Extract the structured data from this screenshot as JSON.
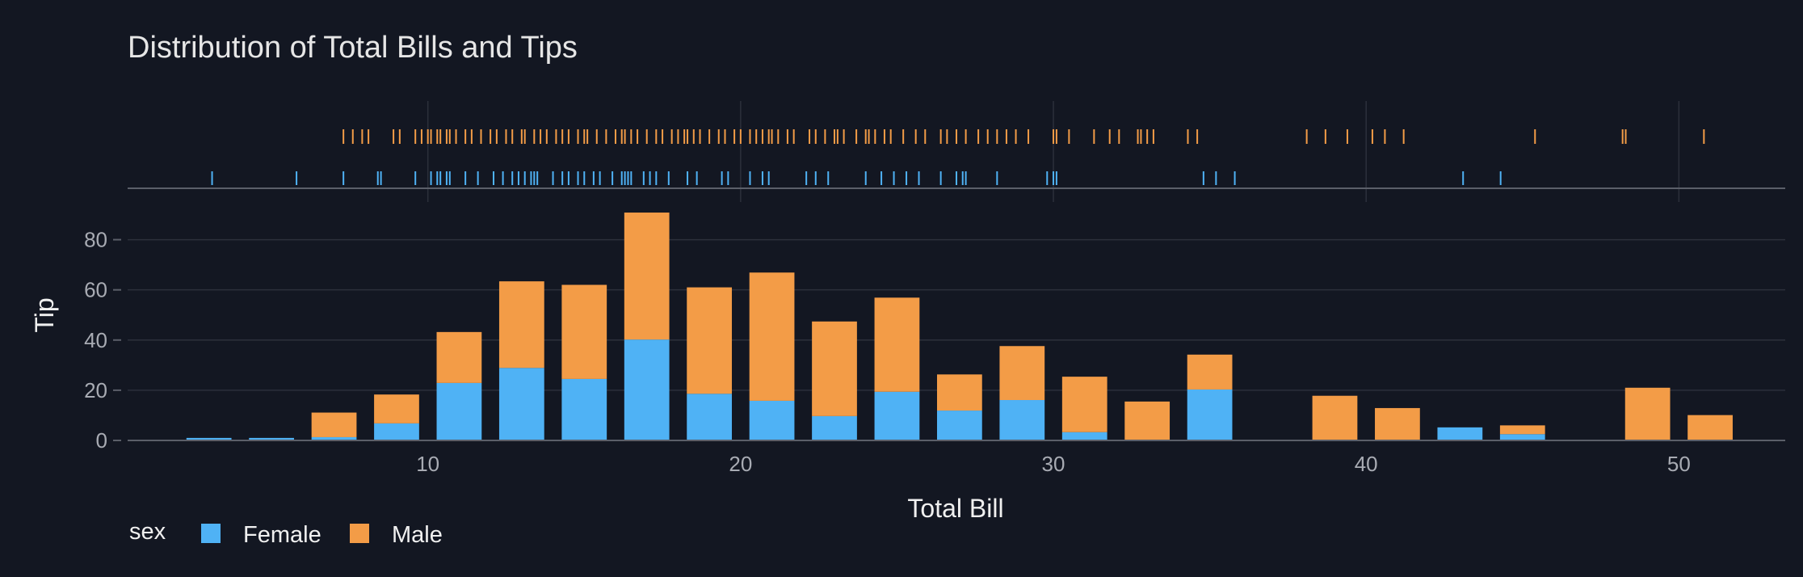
{
  "chart_data": {
    "type": "bar",
    "title": "Distribution of Total Bills and Tips",
    "xlabel": "Total Bill",
    "ylabel": "Tip",
    "xlim": [
      0.4,
      53.4
    ],
    "ylim": [
      0,
      95
    ],
    "x_ticks": [
      10,
      20,
      30,
      40,
      50
    ],
    "y_ticks": [
      0,
      20,
      40,
      60,
      80
    ],
    "bin_width": 2,
    "legend": {
      "title": "sex",
      "placement": "bottom-left",
      "entries": [
        "Female",
        "Male"
      ]
    },
    "colors": {
      "Female": "#4fb2f5",
      "Male": "#f39c47"
    },
    "categories": [
      3,
      5,
      7,
      9,
      11,
      13,
      15,
      17,
      19,
      21,
      23,
      25,
      27,
      29,
      31,
      33,
      35,
      37,
      39,
      41,
      43,
      45,
      47,
      49,
      51
    ],
    "series": [
      {
        "name": "Female",
        "values": [
          1.0,
          1.0,
          1.3,
          6.8,
          22.9,
          28.9,
          24.5,
          40.2,
          18.6,
          15.8,
          9.7,
          19.4,
          11.9,
          16.1,
          3.3,
          0,
          20.3,
          0,
          0,
          0,
          5.2,
          2.5,
          0,
          0,
          0
        ]
      },
      {
        "name": "Male",
        "values": [
          0,
          0,
          9.8,
          11.5,
          20.3,
          34.5,
          37.5,
          50.6,
          42.4,
          51.1,
          37.7,
          37.5,
          14.4,
          21.5,
          22.1,
          15.5,
          13.9,
          0,
          17.8,
          12.9,
          0,
          3.5,
          0,
          21.0,
          10.1
        ]
      }
    ],
    "rug": {
      "Male": [
        7.3,
        7.6,
        7.9,
        8.1,
        8.9,
        9.1,
        9.6,
        9.8,
        10.0,
        10.1,
        10.3,
        10.4,
        10.6,
        10.7,
        10.9,
        11.2,
        11.4,
        11.7,
        12.0,
        12.2,
        12.5,
        12.7,
        13.0,
        13.1,
        13.4,
        13.6,
        13.8,
        14.1,
        14.3,
        14.5,
        14.8,
        15.0,
        15.1,
        15.4,
        15.7,
        16.0,
        16.2,
        16.3,
        16.5,
        16.7,
        17.0,
        17.3,
        17.5,
        17.8,
        18.0,
        18.2,
        18.3,
        18.5,
        18.7,
        19.0,
        19.3,
        19.5,
        19.8,
        20.0,
        20.3,
        20.5,
        20.7,
        20.9,
        21.0,
        21.2,
        21.5,
        21.7,
        22.2,
        22.4,
        22.7,
        23.0,
        23.1,
        23.3,
        23.7,
        24.0,
        24.1,
        24.3,
        24.6,
        24.8,
        25.2,
        25.6,
        25.9,
        26.4,
        26.6,
        26.9,
        27.2,
        27.6,
        27.9,
        28.2,
        28.5,
        28.8,
        29.2,
        30.0,
        30.1,
        30.5,
        31.3,
        31.8,
        32.1,
        32.7,
        32.8,
        33.0,
        33.2,
        34.3,
        34.6,
        38.1,
        38.7,
        39.4,
        40.2,
        40.6,
        41.2,
        45.4,
        48.2,
        48.3,
        50.8
      ],
      "Female": [
        3.1,
        5.8,
        7.3,
        8.4,
        8.5,
        9.6,
        10.1,
        10.3,
        10.4,
        10.6,
        10.7,
        11.2,
        11.6,
        12.1,
        12.4,
        12.7,
        12.9,
        13.1,
        13.3,
        13.4,
        13.5,
        14.0,
        14.3,
        14.5,
        14.8,
        15.0,
        15.3,
        15.5,
        15.9,
        16.2,
        16.3,
        16.4,
        16.5,
        16.9,
        17.1,
        17.3,
        17.7,
        18.3,
        18.6,
        19.4,
        19.6,
        20.3,
        20.7,
        20.9,
        22.1,
        22.4,
        22.8,
        24.0,
        24.5,
        24.9,
        25.3,
        25.7,
        26.4,
        26.9,
        27.1,
        27.2,
        28.2,
        29.8,
        30.0,
        30.1,
        34.8,
        35.2,
        35.8,
        43.1,
        44.3
      ]
    }
  }
}
